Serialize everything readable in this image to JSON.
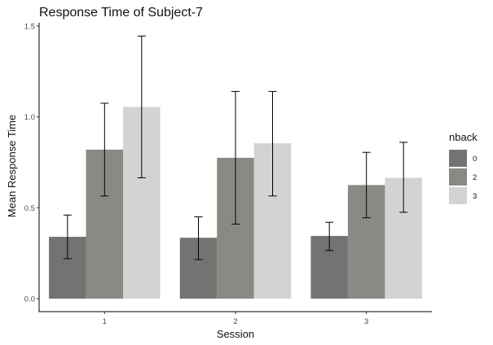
{
  "chart_data": {
    "type": "bar",
    "title": "Response Time of Subject-7",
    "xlabel": "Session",
    "ylabel": "Mean Response Time",
    "categories": [
      "1",
      "2",
      "3"
    ],
    "ylim": [
      0,
      1.5
    ],
    "yticks": [
      "0.0",
      "0.5",
      "1.0",
      "1.5"
    ],
    "grid": false,
    "legend": {
      "title": "nback",
      "position": "right"
    },
    "series": [
      {
        "name": "0",
        "color": "#737373",
        "values": [
          0.34,
          0.335,
          0.345
        ],
        "error_low": [
          0.22,
          0.215,
          0.265
        ],
        "error_high": [
          0.46,
          0.45,
          0.42
        ]
      },
      {
        "name": "2",
        "color": "#8a8a84",
        "values": [
          0.82,
          0.775,
          0.625
        ],
        "error_low": [
          0.565,
          0.41,
          0.445
        ],
        "error_high": [
          1.075,
          1.14,
          0.805
        ]
      },
      {
        "name": "3",
        "color": "#d3d3d3",
        "values": [
          1.055,
          0.855,
          0.665
        ],
        "error_low": [
          0.665,
          0.565,
          0.475
        ],
        "error_high": [
          1.445,
          1.14,
          0.86
        ]
      }
    ]
  }
}
